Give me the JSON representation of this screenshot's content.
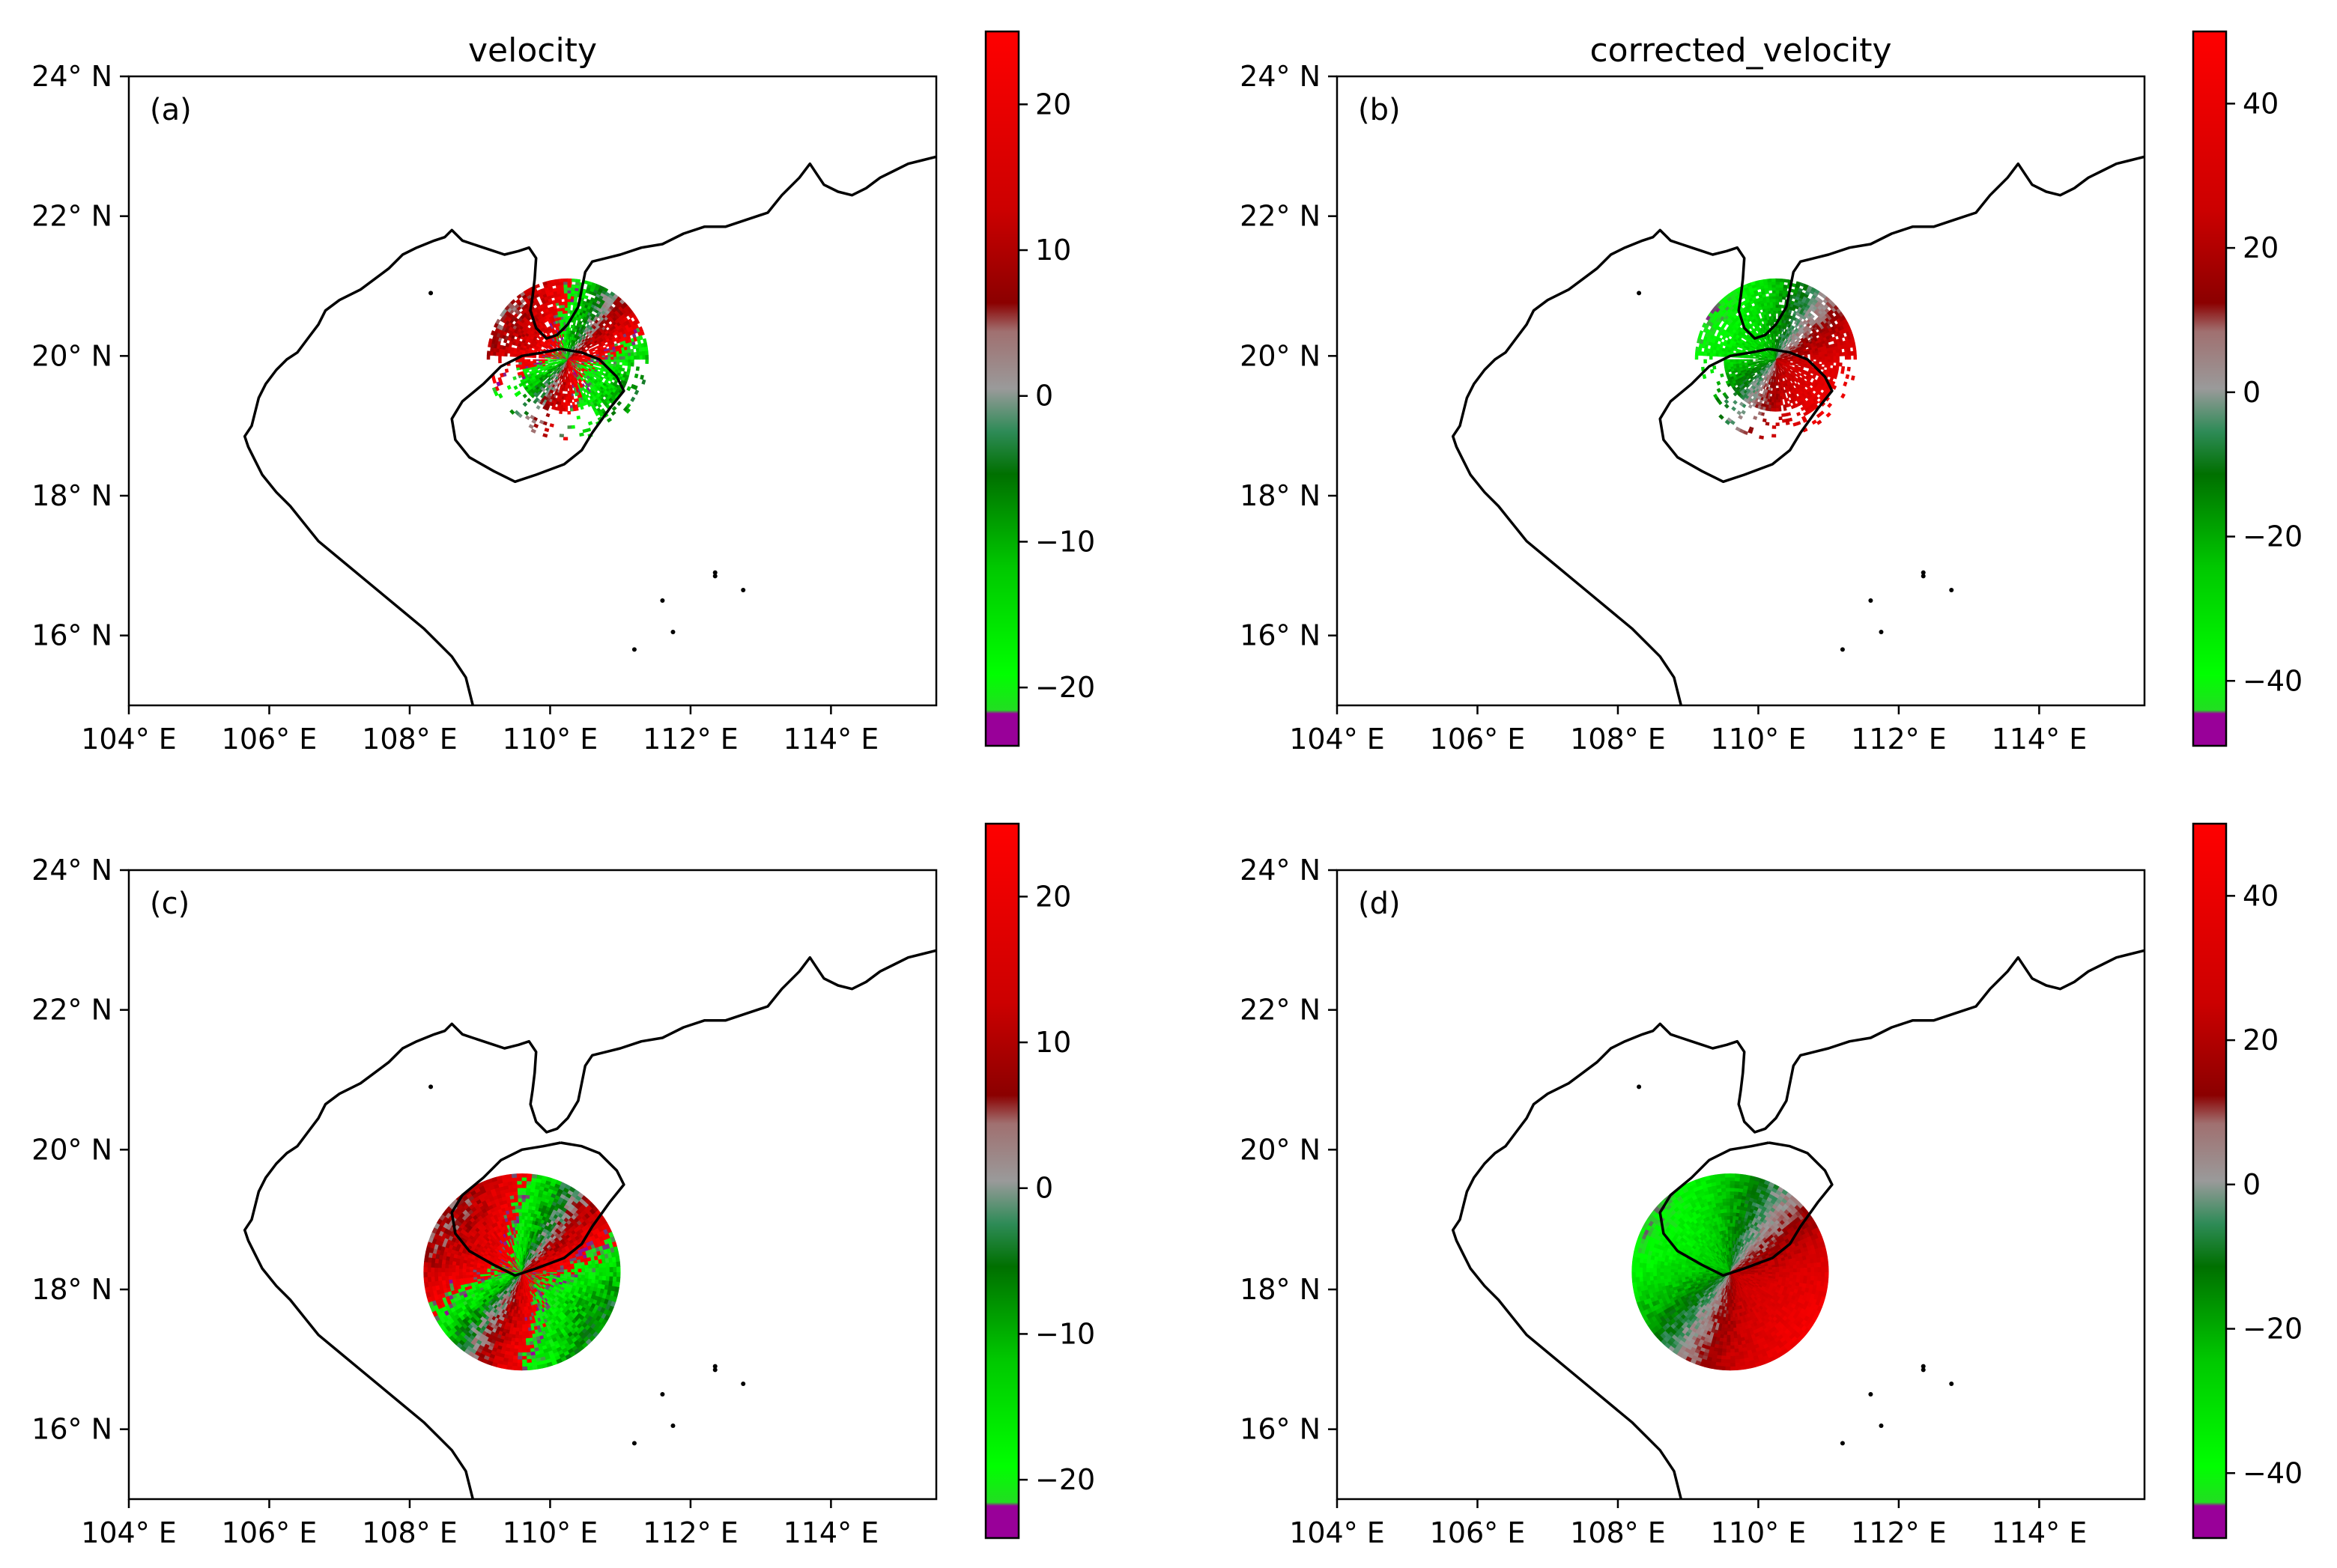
{
  "chart_data": {
    "type": "heatmap",
    "description_free_values": true,
    "colors": {
      "frame": "#000000",
      "coast": "#000000",
      "bg": "#ffffff",
      "colormap": [
        "#ff0000",
        "#c80000",
        "#8b0000",
        "#a09090",
        "#909090",
        "#3c9a6a",
        "#006400",
        "#00a000",
        "#00ff00",
        "#00dd00",
        "#990099"
      ]
    },
    "x_axis": {
      "lim": [
        104,
        115.5
      ],
      "ticks": [
        104,
        106,
        108,
        110,
        112,
        114
      ],
      "tick_labels": [
        "104° E",
        "106° E",
        "108° E",
        "110° E",
        "112° E",
        "114° E"
      ]
    },
    "y_axis": {
      "lim": [
        15,
        24
      ],
      "ticks": [
        16,
        18,
        20,
        22,
        24
      ],
      "tick_labels": [
        "16° N",
        "18° N",
        "20° N",
        "22° N",
        "24° N"
      ]
    },
    "panels": [
      {
        "label": "(a)",
        "title": "velocity",
        "radar_center": [
          110.25,
          19.95
        ],
        "radar_radius_deg": 1.15,
        "pattern": "folded",
        "colorbar": {
          "range": [
            -24,
            25
          ],
          "ticks": [
            -20,
            -10,
            0,
            10,
            20
          ],
          "tick_labels": [
            "−20",
            "−10",
            "0",
            "10",
            "20"
          ]
        }
      },
      {
        "label": "(b)",
        "title": "corrected_velocity",
        "radar_center": [
          110.25,
          19.95
        ],
        "radar_radius_deg": 1.15,
        "pattern": "corrected",
        "colorbar": {
          "range": [
            -49,
            50
          ],
          "ticks": [
            -40,
            -20,
            0,
            20,
            40
          ],
          "tick_labels": [
            "−40",
            "−20",
            "0",
            "20",
            "40"
          ]
        }
      },
      {
        "label": "(c)",
        "title": "",
        "radar_center": [
          109.6,
          18.25
        ],
        "radar_radius_deg": 1.4,
        "pattern": "folded-disk",
        "colorbar": {
          "range": [
            -24,
            25
          ],
          "ticks": [
            -20,
            -10,
            0,
            10,
            20
          ],
          "tick_labels": [
            "−20",
            "−10",
            "0",
            "10",
            "20"
          ]
        }
      },
      {
        "label": "(d)",
        "title": "",
        "radar_center": [
          109.6,
          18.25
        ],
        "radar_radius_deg": 1.4,
        "pattern": "corrected-disk",
        "colorbar": {
          "range": [
            -49,
            50
          ],
          "ticks": [
            -40,
            -20,
            0,
            20,
            40
          ],
          "tick_labels": [
            "−40",
            "−20",
            "0",
            "20",
            "40"
          ]
        }
      }
    ],
    "coastline": {
      "mainland": [
        [
          108.9,
          15.0
        ],
        [
          108.8,
          15.4
        ],
        [
          108.6,
          15.7
        ],
        [
          108.4,
          15.9
        ],
        [
          108.2,
          16.1
        ],
        [
          107.9,
          16.35
        ],
        [
          107.6,
          16.6
        ],
        [
          107.3,
          16.85
        ],
        [
          107.0,
          17.1
        ],
        [
          106.7,
          17.35
        ],
        [
          106.5,
          17.6
        ],
        [
          106.3,
          17.85
        ],
        [
          106.1,
          18.05
        ],
        [
          105.9,
          18.3
        ],
        [
          105.8,
          18.5
        ],
        [
          105.7,
          18.7
        ],
        [
          105.65,
          18.85
        ],
        [
          105.75,
          19.0
        ],
        [
          105.8,
          19.2
        ],
        [
          105.85,
          19.4
        ],
        [
          105.95,
          19.6
        ],
        [
          106.1,
          19.8
        ],
        [
          106.25,
          19.95
        ],
        [
          106.4,
          20.05
        ],
        [
          106.55,
          20.25
        ],
        [
          106.7,
          20.45
        ],
        [
          106.8,
          20.65
        ],
        [
          107.0,
          20.8
        ],
        [
          107.3,
          20.95
        ],
        [
          107.5,
          21.1
        ],
        [
          107.7,
          21.25
        ],
        [
          107.9,
          21.45
        ],
        [
          108.1,
          21.55
        ],
        [
          108.35,
          21.65
        ],
        [
          108.5,
          21.7
        ],
        [
          108.6,
          21.8
        ],
        [
          108.75,
          21.65
        ],
        [
          108.9,
          21.6
        ],
        [
          109.05,
          21.55
        ],
        [
          109.2,
          21.5
        ],
        [
          109.35,
          21.45
        ],
        [
          109.55,
          21.5
        ],
        [
          109.7,
          21.55
        ],
        [
          109.8,
          21.4
        ],
        [
          109.78,
          21.1
        ],
        [
          109.75,
          20.85
        ],
        [
          109.72,
          20.65
        ],
        [
          109.8,
          20.4
        ],
        [
          109.95,
          20.25
        ],
        [
          110.1,
          20.3
        ],
        [
          110.25,
          20.45
        ],
        [
          110.4,
          20.7
        ],
        [
          110.45,
          20.95
        ],
        [
          110.5,
          21.2
        ],
        [
          110.6,
          21.35
        ],
        [
          110.8,
          21.4
        ],
        [
          111.0,
          21.45
        ],
        [
          111.3,
          21.55
        ],
        [
          111.6,
          21.6
        ],
        [
          111.9,
          21.75
        ],
        [
          112.2,
          21.85
        ],
        [
          112.5,
          21.85
        ],
        [
          112.8,
          21.95
        ],
        [
          113.1,
          22.05
        ],
        [
          113.3,
          22.3
        ],
        [
          113.55,
          22.55
        ],
        [
          113.7,
          22.75
        ],
        [
          113.8,
          22.6
        ],
        [
          113.9,
          22.45
        ],
        [
          114.1,
          22.35
        ],
        [
          114.3,
          22.3
        ],
        [
          114.5,
          22.4
        ],
        [
          114.7,
          22.55
        ],
        [
          114.9,
          22.65
        ],
        [
          115.1,
          22.75
        ],
        [
          115.3,
          22.8
        ],
        [
          115.5,
          22.85
        ]
      ],
      "hainan": [
        [
          110.15,
          20.1
        ],
        [
          110.45,
          20.05
        ],
        [
          110.7,
          19.95
        ],
        [
          110.95,
          19.7
        ],
        [
          111.05,
          19.5
        ],
        [
          110.85,
          19.25
        ],
        [
          110.6,
          18.9
        ],
        [
          110.45,
          18.65
        ],
        [
          110.2,
          18.45
        ],
        [
          109.8,
          18.3
        ],
        [
          109.5,
          18.2
        ],
        [
          109.2,
          18.35
        ],
        [
          108.85,
          18.55
        ],
        [
          108.65,
          18.8
        ],
        [
          108.6,
          19.1
        ],
        [
          108.75,
          19.35
        ],
        [
          109.05,
          19.6
        ],
        [
          109.3,
          19.85
        ],
        [
          109.6,
          20.0
        ],
        [
          109.9,
          20.05
        ],
        [
          110.15,
          20.1
        ]
      ]
    }
  }
}
